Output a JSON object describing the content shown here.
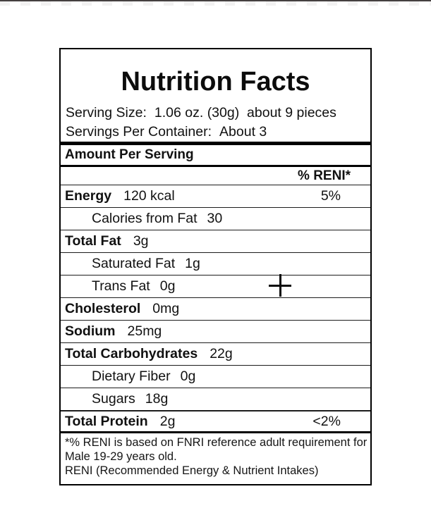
{
  "colors": {
    "text": "#111111",
    "border": "#000000",
    "top_edge_line": "#454040",
    "background": "#ffffff"
  },
  "label": {
    "title": "Nutrition Facts",
    "serving_size": {
      "label": "Serving Size:",
      "value": "1.06 oz. (30g)  about 9 pieces"
    },
    "servings_per_container": {
      "label": "Servings Per Container:",
      "value": "About 3"
    },
    "amount_per_serving": "Amount Per Serving",
    "percent_header": "% RENI*",
    "rows": [
      {
        "label": "Energy",
        "value": "120 kcal",
        "pct": "5%"
      },
      {
        "label": "Calories from Fat",
        "value": "30",
        "pct": ""
      },
      {
        "label": "Total Fat",
        "value": "3g",
        "pct": ""
      },
      {
        "label": "Saturated Fat",
        "value": "1g",
        "pct": ""
      },
      {
        "label": "Trans Fat",
        "value": "0g",
        "pct": ""
      },
      {
        "label": "Cholesterol",
        "value": "0mg",
        "pct": ""
      },
      {
        "label": "Sodium",
        "value": "25mg",
        "pct": ""
      },
      {
        "label": "Total Carbohydrates",
        "value": "22g",
        "pct": ""
      },
      {
        "label": "Dietary Fiber",
        "value": "0g",
        "pct": ""
      },
      {
        "label": "Sugars",
        "value": "18g",
        "pct": ""
      },
      {
        "label": "Total Protein",
        "value": "2g",
        "pct": "<2%"
      }
    ],
    "footnote": {
      "lines": [
        "*% RENI is based on FNRI reference adult requirement for",
        "Male 19-29 years old.",
        "RENI (Recommended Energy & Nutrient Intakes)"
      ]
    }
  },
  "cursor": {
    "type": "crosshair"
  }
}
